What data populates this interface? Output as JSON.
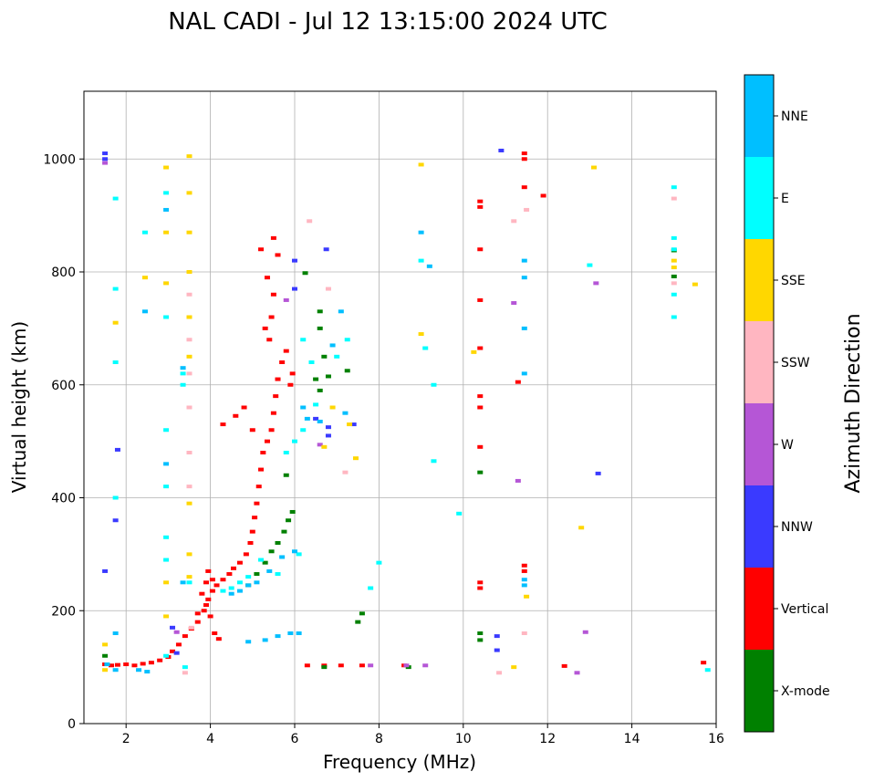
{
  "chart_data": {
    "type": "scatter",
    "title": "NAL CADI - Jul 12 13:15:00 2024 UTC",
    "xlabel": "Frequency (MHz)",
    "ylabel": "Virtual height (km)",
    "xlim": [
      1,
      16
    ],
    "ylim": [
      0,
      1120
    ],
    "xticks": [
      2,
      4,
      6,
      8,
      10,
      12,
      14,
      16
    ],
    "yticks": [
      0,
      200,
      400,
      600,
      800,
      1000
    ],
    "grid": true,
    "colorbar": {
      "title": "Azimuth Direction",
      "categories": [
        {
          "label": "X-mode",
          "color": "#008000"
        },
        {
          "label": "Vertical",
          "color": "#ff0000"
        },
        {
          "label": "NNW",
          "color": "#3a3aff"
        },
        {
          "label": "W",
          "color": "#b556d6"
        },
        {
          "label": "SSW",
          "color": "#ffb6c1"
        },
        {
          "label": "SSE",
          "color": "#ffd700"
        },
        {
          "label": "E",
          "color": "#00ffff"
        },
        {
          "label": "NNE",
          "color": "#00bfff"
        }
      ]
    },
    "series": [
      {
        "name": "Vertical",
        "color": "#ff0000",
        "points": [
          [
            1.5,
            105
          ],
          [
            1.65,
            103
          ],
          [
            1.8,
            104
          ],
          [
            2.0,
            105
          ],
          [
            2.2,
            103
          ],
          [
            2.4,
            106
          ],
          [
            2.6,
            108
          ],
          [
            2.8,
            112
          ],
          [
            3.0,
            118
          ],
          [
            3.1,
            128
          ],
          [
            3.25,
            140
          ],
          [
            3.4,
            155
          ],
          [
            3.55,
            168
          ],
          [
            3.7,
            180
          ],
          [
            3.85,
            200
          ],
          [
            3.95,
            220
          ],
          [
            4.05,
            235
          ],
          [
            4.15,
            245
          ],
          [
            4.3,
            255
          ],
          [
            4.45,
            265
          ],
          [
            4.55,
            275
          ],
          [
            4.7,
            285
          ],
          [
            4.85,
            300
          ],
          [
            4.95,
            320
          ],
          [
            5.0,
            340
          ],
          [
            5.05,
            365
          ],
          [
            5.1,
            390
          ],
          [
            5.15,
            420
          ],
          [
            5.2,
            450
          ],
          [
            5.25,
            480
          ],
          [
            5.35,
            500
          ],
          [
            5.45,
            520
          ],
          [
            5.5,
            550
          ],
          [
            5.55,
            580
          ],
          [
            5.6,
            610
          ],
          [
            5.7,
            640
          ],
          [
            5.8,
            660
          ],
          [
            5.9,
            600
          ],
          [
            5.95,
            620
          ],
          [
            5.4,
            680
          ],
          [
            5.3,
            700
          ],
          [
            5.45,
            720
          ],
          [
            5.5,
            760
          ],
          [
            5.35,
            790
          ],
          [
            5.6,
            830
          ],
          [
            5.5,
            860
          ],
          [
            5.2,
            840
          ],
          [
            5.0,
            520
          ],
          [
            4.8,
            560
          ],
          [
            4.6,
            545
          ],
          [
            4.3,
            530
          ],
          [
            3.9,
            210
          ],
          [
            4.0,
            190
          ],
          [
            4.1,
            160
          ],
          [
            4.2,
            150
          ],
          [
            3.7,
            195
          ],
          [
            3.8,
            230
          ],
          [
            3.9,
            250
          ],
          [
            4.05,
            255
          ],
          [
            3.95,
            270
          ],
          [
            10.4,
            665
          ],
          [
            10.4,
            580
          ],
          [
            10.4,
            560
          ],
          [
            10.4,
            490
          ],
          [
            10.4,
            250
          ],
          [
            10.4,
            240
          ],
          [
            10.4,
            925
          ],
          [
            10.4,
            915
          ],
          [
            10.4,
            840
          ],
          [
            10.4,
            750
          ],
          [
            11.3,
            605
          ],
          [
            11.45,
            950
          ],
          [
            11.45,
            1000
          ],
          [
            11.45,
            1010
          ],
          [
            11.45,
            280
          ],
          [
            11.45,
            270
          ],
          [
            11.9,
            935
          ],
          [
            12.4,
            102
          ],
          [
            6.3,
            103
          ],
          [
            6.7,
            103
          ],
          [
            7.1,
            103
          ],
          [
            7.6,
            103
          ],
          [
            8.6,
            103
          ],
          [
            15.7,
            108
          ]
        ]
      },
      {
        "name": "X-mode",
        "color": "#008000",
        "points": [
          [
            4.9,
            245
          ],
          [
            5.1,
            265
          ],
          [
            5.3,
            285
          ],
          [
            5.45,
            305
          ],
          [
            5.6,
            320
          ],
          [
            5.75,
            340
          ],
          [
            5.85,
            360
          ],
          [
            5.95,
            375
          ],
          [
            5.8,
            440
          ],
          [
            6.25,
            798
          ],
          [
            6.6,
            730
          ],
          [
            6.6,
            700
          ],
          [
            6.7,
            650
          ],
          [
            6.6,
            590
          ],
          [
            6.5,
            610
          ],
          [
            6.8,
            615
          ],
          [
            7.25,
            625
          ],
          [
            7.5,
            180
          ],
          [
            7.6,
            195
          ],
          [
            10.4,
            160
          ],
          [
            10.4,
            148
          ],
          [
            10.4,
            445
          ],
          [
            8.7,
            100
          ],
          [
            6.7,
            100
          ],
          [
            1.5,
            120
          ],
          [
            15.0,
            838
          ],
          [
            15.0,
            792
          ]
        ]
      },
      {
        "name": "NNW",
        "color": "#3a3aff",
        "points": [
          [
            1.5,
            1010
          ],
          [
            1.5,
            1000
          ],
          [
            1.5,
            270
          ],
          [
            1.8,
            485
          ],
          [
            1.75,
            360
          ],
          [
            6.75,
            840
          ],
          [
            6.0,
            820
          ],
          [
            6.0,
            770
          ],
          [
            6.5,
            540
          ],
          [
            6.8,
            525
          ],
          [
            6.8,
            510
          ],
          [
            7.4,
            530
          ],
          [
            10.9,
            1015
          ],
          [
            10.8,
            155
          ],
          [
            10.8,
            130
          ],
          [
            13.2,
            443
          ],
          [
            3.1,
            170
          ],
          [
            3.2,
            125
          ]
        ]
      },
      {
        "name": "W",
        "color": "#b556d6",
        "points": [
          [
            7.8,
            103
          ],
          [
            8.65,
            103
          ],
          [
            9.1,
            103
          ],
          [
            12.7,
            90
          ],
          [
            12.9,
            162
          ],
          [
            13.15,
            780
          ],
          [
            11.3,
            430
          ],
          [
            11.2,
            745
          ],
          [
            6.6,
            494
          ],
          [
            5.8,
            750
          ],
          [
            3.2,
            162
          ],
          [
            1.5,
            993
          ]
        ]
      },
      {
        "name": "SSW",
        "color": "#ffb6c1",
        "points": [
          [
            15.0,
            930
          ],
          [
            15.0,
            780
          ],
          [
            11.2,
            890
          ],
          [
            11.5,
            910
          ],
          [
            11.45,
            160
          ],
          [
            10.85,
            90
          ],
          [
            6.35,
            890
          ],
          [
            7.2,
            445
          ],
          [
            6.8,
            770
          ],
          [
            3.5,
            480
          ],
          [
            3.5,
            420
          ],
          [
            3.5,
            620
          ],
          [
            3.5,
            560
          ],
          [
            3.5,
            680
          ],
          [
            3.5,
            760
          ],
          [
            3.55,
            170
          ],
          [
            3.4,
            90
          ]
        ]
      },
      {
        "name": "SSE",
        "color": "#ffd700",
        "points": [
          [
            15.0,
            808
          ],
          [
            15.0,
            820
          ],
          [
            15.5,
            778
          ],
          [
            13.1,
            985
          ],
          [
            12.8,
            347
          ],
          [
            11.5,
            225
          ],
          [
            11.2,
            100
          ],
          [
            10.25,
            658
          ],
          [
            9.0,
            990
          ],
          [
            9.0,
            690
          ],
          [
            7.45,
            470
          ],
          [
            7.3,
            530
          ],
          [
            6.7,
            490
          ],
          [
            6.9,
            560
          ],
          [
            3.5,
            1005
          ],
          [
            3.5,
            940
          ],
          [
            3.5,
            870
          ],
          [
            3.5,
            800
          ],
          [
            3.5,
            720
          ],
          [
            3.5,
            650
          ],
          [
            3.5,
            390
          ],
          [
            3.5,
            300
          ],
          [
            3.5,
            260
          ],
          [
            2.95,
            985
          ],
          [
            2.95,
            870
          ],
          [
            2.95,
            780
          ],
          [
            2.95,
            250
          ],
          [
            2.95,
            190
          ],
          [
            2.45,
            790
          ],
          [
            1.75,
            710
          ],
          [
            1.5,
            140
          ],
          [
            1.5,
            95
          ]
        ]
      },
      {
        "name": "E",
        "color": "#00ffff",
        "points": [
          [
            15.0,
            950
          ],
          [
            15.0,
            860
          ],
          [
            15.0,
            840
          ],
          [
            15.0,
            760
          ],
          [
            15.0,
            720
          ],
          [
            15.8,
            95
          ],
          [
            13.0,
            812
          ],
          [
            9.3,
            600
          ],
          [
            9.0,
            820
          ],
          [
            9.1,
            665
          ],
          [
            9.3,
            465
          ],
          [
            9.9,
            372
          ],
          [
            8.0,
            285
          ],
          [
            7.8,
            240
          ],
          [
            7.25,
            680
          ],
          [
            7.0,
            650
          ],
          [
            6.2,
            680
          ],
          [
            6.4,
            640
          ],
          [
            6.5,
            565
          ],
          [
            6.2,
            520
          ],
          [
            6.0,
            500
          ],
          [
            5.8,
            480
          ],
          [
            4.5,
            240
          ],
          [
            4.3,
            235
          ],
          [
            4.7,
            250
          ],
          [
            4.9,
            260
          ],
          [
            5.2,
            290
          ],
          [
            5.6,
            265
          ],
          [
            6.1,
            300
          ],
          [
            3.5,
            250
          ],
          [
            3.4,
            100
          ],
          [
            3.35,
            620
          ],
          [
            3.35,
            600
          ],
          [
            2.95,
            940
          ],
          [
            2.95,
            720
          ],
          [
            2.95,
            520
          ],
          [
            2.95,
            420
          ],
          [
            2.95,
            330
          ],
          [
            2.95,
            290
          ],
          [
            2.95,
            120
          ],
          [
            2.45,
            870
          ],
          [
            1.75,
            930
          ],
          [
            1.75,
            770
          ],
          [
            1.75,
            640
          ],
          [
            1.75,
            400
          ]
        ]
      },
      {
        "name": "NNE",
        "color": "#00bfff",
        "points": [
          [
            11.45,
            820
          ],
          [
            11.45,
            790
          ],
          [
            11.45,
            700
          ],
          [
            11.45,
            620
          ],
          [
            11.45,
            255
          ],
          [
            11.45,
            245
          ],
          [
            9.0,
            870
          ],
          [
            9.2,
            810
          ],
          [
            7.1,
            730
          ],
          [
            6.9,
            670
          ],
          [
            6.2,
            560
          ],
          [
            6.3,
            540
          ],
          [
            6.6,
            535
          ],
          [
            7.2,
            550
          ],
          [
            4.5,
            230
          ],
          [
            4.7,
            235
          ],
          [
            4.9,
            245
          ],
          [
            5.1,
            250
          ],
          [
            5.4,
            270
          ],
          [
            5.7,
            295
          ],
          [
            6.0,
            305
          ],
          [
            4.9,
            145
          ],
          [
            5.3,
            148
          ],
          [
            5.6,
            155
          ],
          [
            5.9,
            160
          ],
          [
            6.1,
            160
          ],
          [
            3.35,
            630
          ],
          [
            3.35,
            250
          ],
          [
            2.95,
            910
          ],
          [
            2.95,
            460
          ],
          [
            2.45,
            730
          ],
          [
            1.75,
            160
          ],
          [
            1.55,
            105
          ],
          [
            1.75,
            95
          ],
          [
            2.3,
            95
          ],
          [
            2.5,
            92
          ]
        ]
      }
    ]
  }
}
